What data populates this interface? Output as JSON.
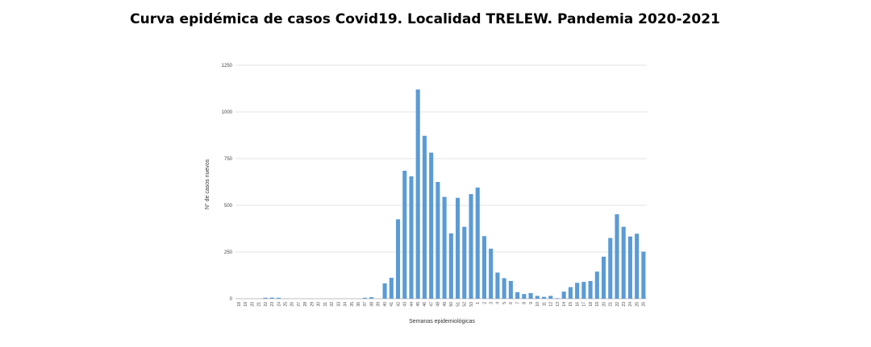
{
  "chart_data": {
    "type": "bar",
    "title": "Curva epidémica de casos Covid19. Localidad TRELEW.  Pandemia 2020-2021",
    "xlabel": "Semanas epidemiológicas",
    "ylabel": "N° de casos nuevos",
    "ylim": [
      0,
      1250
    ],
    "yticks": [
      "0",
      "250",
      "500",
      "750",
      "1000",
      "1250"
    ],
    "grid": true,
    "bar_color": "#5B9BD5",
    "categories": [
      "18",
      "19",
      "20",
      "21",
      "22",
      "23",
      "24",
      "25",
      "26",
      "27",
      "28",
      "29",
      "30",
      "31",
      "32",
      "33",
      "34",
      "35",
      "36",
      "37",
      "38",
      "39",
      "40",
      "41",
      "42",
      "43",
      "44",
      "45",
      "46",
      "47",
      "48",
      "49",
      "50",
      "51",
      "52",
      "53",
      "1",
      "2",
      "3",
      "4",
      "5",
      "6",
      "7",
      "8",
      "9",
      "10",
      "11",
      "12",
      "13",
      "14",
      "15",
      "16",
      "17",
      "18",
      "19",
      "20",
      "21",
      "22",
      "23",
      "24",
      "25",
      "26"
    ],
    "values": [
      0,
      0,
      0,
      0,
      5,
      6,
      5,
      0,
      0,
      0,
      0,
      0,
      0,
      0,
      0,
      0,
      0,
      0,
      0,
      5,
      8,
      0,
      82,
      112,
      425,
      685,
      655,
      1120,
      872,
      782,
      625,
      545,
      350,
      540,
      385,
      560,
      595,
      335,
      268,
      140,
      110,
      95,
      35,
      25,
      30,
      15,
      10,
      15,
      3,
      38,
      62,
      85,
      90,
      95,
      145,
      225,
      325,
      452,
      385,
      333,
      348,
      252
    ]
  }
}
